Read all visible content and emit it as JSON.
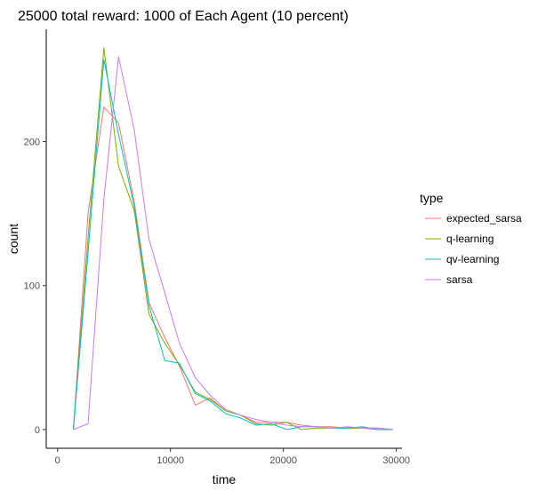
{
  "chart_data": {
    "type": "line",
    "title": "25000 total reward: 1000 of Each Agent (10 percent)",
    "xlabel": "time",
    "ylabel": "count",
    "xlim": [
      -1000,
      30500
    ],
    "ylim": [
      -13,
      278
    ],
    "xticks": [
      0,
      10000,
      20000,
      30000
    ],
    "xtick_labels": [
      "0",
      "10000",
      "20000",
      "30000"
    ],
    "yticks": [
      0,
      100,
      200
    ],
    "ytick_labels": [
      "0",
      "100",
      "200"
    ],
    "grid": false,
    "legend": {
      "title": "type",
      "position": "right"
    },
    "series": [
      {
        "name": "expected_sarsa",
        "color": "#F8766D",
        "x": [
          1400,
          2700,
          4100,
          5400,
          6800,
          8100,
          9500,
          10800,
          12200,
          13500,
          14900,
          16200,
          17600,
          18900,
          20300,
          21600,
          23000,
          24300,
          25700,
          27000,
          28400,
          29700
        ],
        "y": [
          0,
          150,
          224,
          213,
          158,
          88,
          64,
          44,
          17,
          22,
          13,
          10,
          5,
          5,
          5,
          3,
          2,
          2,
          1,
          1,
          1,
          0
        ]
      },
      {
        "name": "q-learning",
        "color": "#7CAE00",
        "x": [
          1400,
          2700,
          4100,
          5400,
          6800,
          8100,
          9500,
          10800,
          12200,
          13500,
          14900,
          16200,
          17600,
          18900,
          20300,
          21600,
          23000,
          24300,
          25700,
          27000,
          28400,
          29700
        ],
        "y": [
          0,
          133,
          265,
          183,
          152,
          80,
          60,
          45,
          26,
          21,
          13,
          10,
          4,
          3,
          5,
          0,
          1,
          1,
          1,
          1,
          0,
          0
        ]
      },
      {
        "name": "qv-learning",
        "color": "#00BFC4",
        "x": [
          1400,
          2700,
          4100,
          5400,
          6800,
          8100,
          9500,
          10800,
          12200,
          13500,
          14900,
          16200,
          17600,
          18900,
          20300,
          21600,
          23000,
          24300,
          25700,
          27000,
          28400,
          29700
        ],
        "y": [
          0,
          123,
          257,
          205,
          155,
          86,
          48,
          46,
          25,
          20,
          11,
          8,
          3,
          4,
          0,
          2,
          2,
          1,
          1,
          2,
          0,
          0
        ]
      },
      {
        "name": "sarsa",
        "color": "#C77CFF",
        "x": [
          1400,
          2700,
          4100,
          5400,
          6800,
          8100,
          9500,
          10800,
          12200,
          13500,
          14900,
          16200,
          17600,
          18900,
          20300,
          21600,
          23000,
          24300,
          25700,
          27000,
          28400,
          29700
        ],
        "y": [
          0,
          4,
          160,
          259,
          208,
          132,
          95,
          60,
          36,
          24,
          14,
          10,
          7,
          5,
          3,
          2,
          2,
          1,
          2,
          1,
          1,
          0
        ]
      }
    ]
  }
}
